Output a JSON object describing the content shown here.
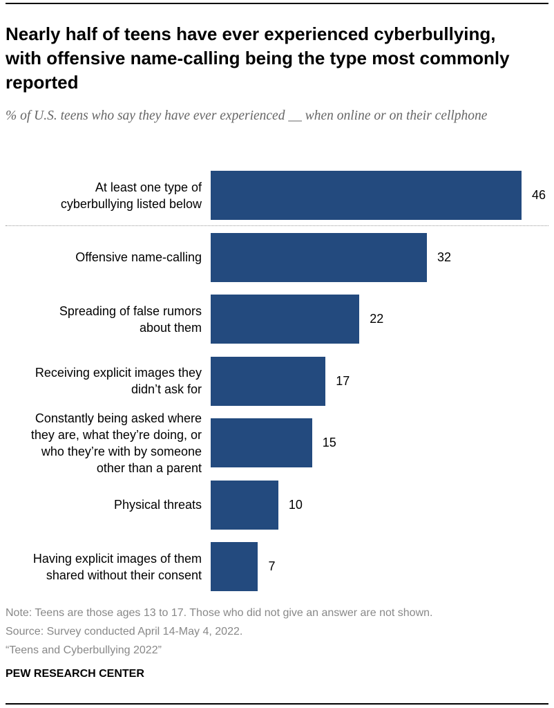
{
  "chart_data": {
    "type": "bar",
    "title": "Nearly half of teens have ever experienced cyberbullying, with offensive name-calling being the type most commonly reported",
    "subtitle": "% of U.S. teens who say they have ever experienced __ when online or on their cellphone",
    "categories": [
      "At least one type of cyberbullying listed below",
      "Offensive name-calling",
      "Spreading of false rumors about them",
      "Receiving explicit images they didn’t ask for",
      "Constantly being asked where they are, what they’re doing, or who they’re with by someone other than a parent",
      "Physical threats",
      "Having explicit images of them shared without their consent"
    ],
    "values": [
      46,
      32,
      22,
      17,
      15,
      10,
      7
    ],
    "color": "#234a7e",
    "note": "Note: Teens are those ages 13 to 17. Those who did not give an answer are not shown.",
    "source": "Source: Survey conducted April 14-May 4, 2022.",
    "report": "“Teens and Cyberbullying 2022”",
    "credit": "PEW RESEARCH CENTER"
  }
}
